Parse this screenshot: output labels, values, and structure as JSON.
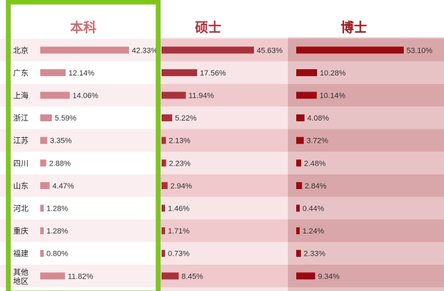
{
  "colors": {
    "bachelor_bar": "#d48a92",
    "master_bar": "#a8323c",
    "doctor_bar": "#9a0a10",
    "bachelor_header": "#d2696f",
    "master_header": "#a8323c",
    "doctor_header": "#9a1a20",
    "highlight_frame": "#7ec51c"
  },
  "chart_data": {
    "type": "bar",
    "orientation": "horizontal",
    "categories": [
      "北京",
      "广东",
      "上海",
      "浙江",
      "江苏",
      "四川",
      "山东",
      "河北",
      "重庆",
      "福建",
      "其他地区"
    ],
    "series": [
      {
        "name": "本科",
        "values": [
          42.33,
          12.14,
          14.06,
          5.59,
          3.35,
          2.88,
          4.47,
          1.28,
          1.28,
          0.8,
          11.82
        ],
        "labels": [
          "42.33%",
          "12.14%",
          "14.06%",
          "5.59%",
          "3.35%",
          "2.88%",
          "4.47%",
          "1.28%",
          "1.28%",
          "0.80%",
          "11.82%"
        ]
      },
      {
        "name": "硕士",
        "values": [
          45.63,
          17.56,
          11.94,
          5.22,
          2.13,
          2.23,
          2.94,
          1.46,
          1.71,
          0.73,
          8.45
        ],
        "labels": [
          "45.63%",
          "17.56%",
          "11.94%",
          "5.22%",
          "2.13%",
          "2.23%",
          "2.94%",
          "1.46%",
          "1.71%",
          "0.73%",
          "8.45%"
        ]
      },
      {
        "name": "博士",
        "values": [
          53.1,
          10.28,
          10.14,
          4.08,
          3.72,
          2.48,
          2.84,
          0.44,
          1.24,
          2.33,
          9.34
        ],
        "labels": [
          "53.10%",
          "10.28%",
          "10.14%",
          "4.08%",
          "3.72%",
          "2.48%",
          "2.84%",
          "0.44%",
          "1.24%",
          "2.33%",
          "9.34%"
        ]
      }
    ],
    "highlighted_series": "本科"
  }
}
